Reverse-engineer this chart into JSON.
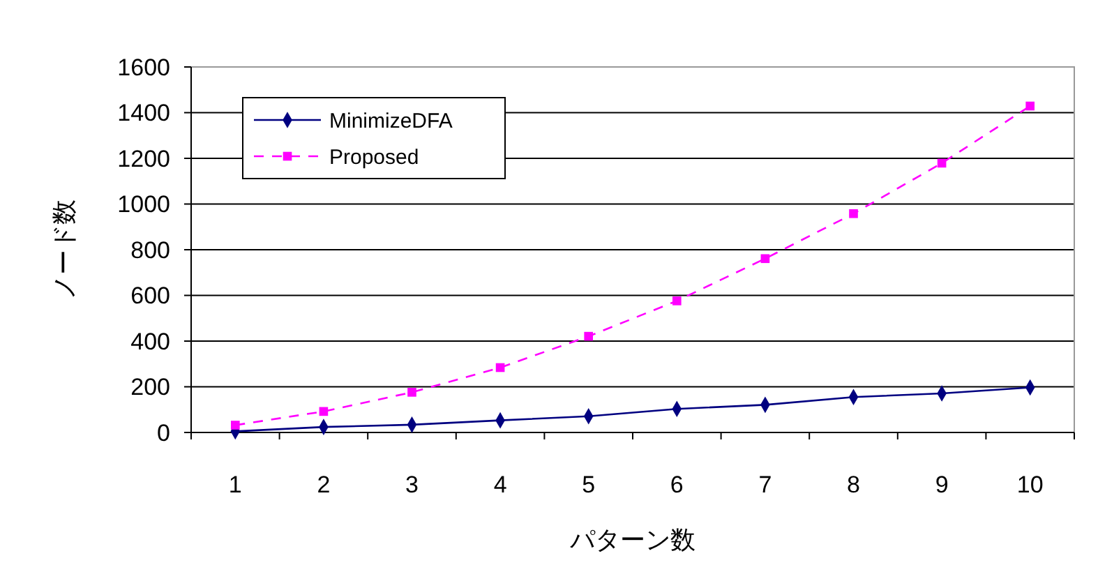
{
  "chart_data": {
    "type": "line",
    "xlabel": "パターン数",
    "ylabel": "ノード数",
    "categories": [
      "1",
      "2",
      "3",
      "4",
      "5",
      "6",
      "7",
      "8",
      "9",
      "10"
    ],
    "series": [
      {
        "name": "MinimizeDFA",
        "color": "#000080",
        "marker": "diamond",
        "line_style": "solid",
        "values": [
          5,
          24,
          34,
          53,
          71,
          103,
          121,
          155,
          171,
          197
        ]
      },
      {
        "name": "Proposed",
        "color": "#ff00ff",
        "marker": "square",
        "line_style": "dashed",
        "values": [
          32,
          92,
          176,
          284,
          421,
          576,
          761,
          958,
          1179,
          1429
        ]
      }
    ],
    "ylim": [
      0,
      1600
    ],
    "yticks": [
      0,
      200,
      400,
      600,
      800,
      1000,
      1200,
      1400,
      1600
    ],
    "grid": "y",
    "legend": "top left"
  }
}
